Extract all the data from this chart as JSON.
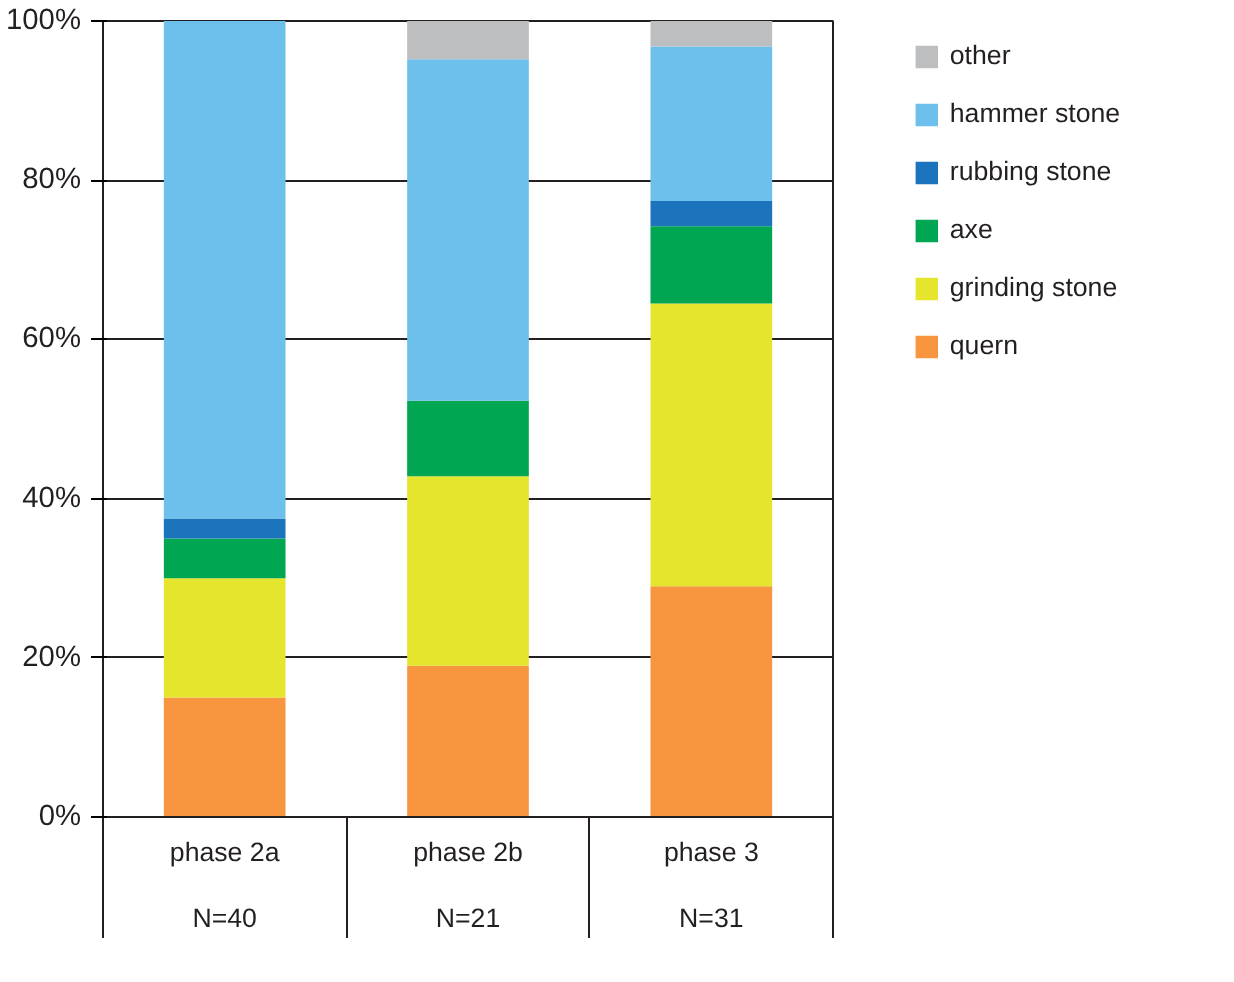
{
  "chart_data": {
    "type": "bar",
    "stacked": true,
    "categories": [
      "phase 2a\n\nN=40",
      "phase 2b\n\nN=21",
      "phase 3\n\nN=31"
    ],
    "series": [
      {
        "name": "quern",
        "color": "#f7963e",
        "values": [
          15.0,
          19.0,
          29.0
        ]
      },
      {
        "name": "grinding stone",
        "color": "#e5e52e",
        "values": [
          15.0,
          23.8,
          35.5
        ]
      },
      {
        "name": "axe",
        "color": "#00a651",
        "values": [
          5.0,
          9.5,
          9.7
        ]
      },
      {
        "name": "rubbing stone",
        "color": "#1c75bc",
        "values": [
          2.5,
          0,
          3.2
        ]
      },
      {
        "name": "hammer stone",
        "color": "#6dc0eb",
        "values": [
          62.5,
          42.9,
          19.4
        ]
      },
      {
        "name": "other",
        "color": "#bcbec0",
        "values": [
          0,
          4.8,
          3.2
        ]
      }
    ],
    "ylim": [
      0,
      100
    ],
    "yticks": [
      {
        "value": 0,
        "label": "0%"
      },
      {
        "value": 20,
        "label": "20%"
      },
      {
        "value": 40,
        "label": "40%"
      },
      {
        "value": 60,
        "label": "60%"
      },
      {
        "value": 80,
        "label": "80%"
      },
      {
        "value": 100,
        "label": "100%"
      }
    ],
    "grid": "y",
    "legend": "right"
  }
}
